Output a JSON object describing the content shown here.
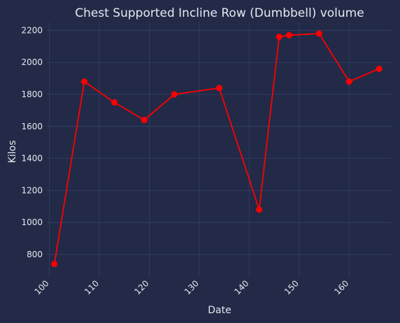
{
  "chart_data": {
    "type": "line",
    "title": "Chest Supported Incline Row (Dumbbell) volume",
    "xlabel": "Date",
    "ylabel": "Kilos",
    "xlim": [
      99.5,
      168.5
    ],
    "ylim": [
      660,
      2250
    ],
    "x_ticks": [
      100,
      110,
      120,
      130,
      140,
      150,
      160
    ],
    "y_ticks": [
      800,
      1000,
      1200,
      1400,
      1600,
      1800,
      2000,
      2200
    ],
    "grid": true,
    "series": [
      {
        "color": "#ff0000",
        "x": [
          101,
          107,
          113,
          119,
          125,
          134,
          142,
          146,
          148,
          154,
          160,
          166
        ],
        "y": [
          740,
          1880,
          1750,
          1640,
          1800,
          1840,
          1080,
          2160,
          2170,
          2180,
          1880,
          1960
        ]
      }
    ]
  }
}
